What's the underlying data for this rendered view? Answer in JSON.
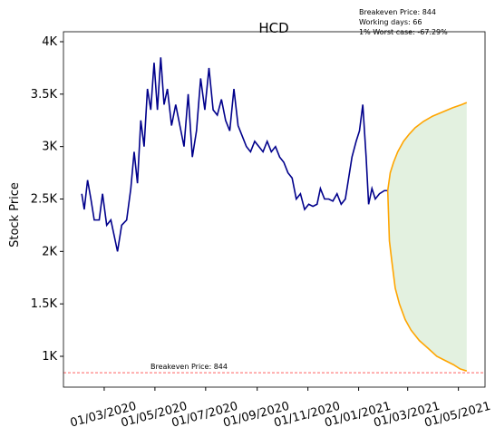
{
  "chart_data": {
    "type": "line",
    "title": "HCD",
    "y_label": "Stock Price",
    "annotation": [
      "Breakeven Price: 844",
      "Working days: 66",
      "1% Worst case: -67.29%"
    ],
    "reference_line": {
      "value": 844,
      "label": "Breakeven Price: 844",
      "color": "#ff0000"
    },
    "band_color": "#e3f1e0",
    "xlim": [
      "2020-01-12",
      "2021-06-02"
    ],
    "xticks": [
      {
        "value": "2020-03-01",
        "label": "01/03/2020"
      },
      {
        "value": "2020-05-01",
        "label": "01/05/2020"
      },
      {
        "value": "2020-07-01",
        "label": "01/07/2020"
      },
      {
        "value": "2020-09-01",
        "label": "01/09/2020"
      },
      {
        "value": "2020-11-01",
        "label": "01/11/2020"
      },
      {
        "value": "2021-01-01",
        "label": "01/01/2021"
      },
      {
        "value": "2021-03-01",
        "label": "01/03/2021"
      },
      {
        "value": "2021-05-01",
        "label": "01/05/2021"
      }
    ],
    "ylim": [
      706,
      4095
    ],
    "yticks": [
      {
        "value": 1000,
        "label": "1K"
      },
      {
        "value": 1500,
        "label": "1.5K"
      },
      {
        "value": 2000,
        "label": "2K"
      },
      {
        "value": 2500,
        "label": "2.5K"
      },
      {
        "value": 3000,
        "label": "3K"
      },
      {
        "value": 3500,
        "label": "3.5K"
      },
      {
        "value": 4000,
        "label": "4K"
      }
    ],
    "series": [
      {
        "color": "#00008b",
        "x": [
          "2020-02-03",
          "2020-02-06",
          "2020-02-10",
          "2020-02-14",
          "2020-02-18",
          "2020-02-24",
          "2020-02-28",
          "2020-03-04",
          "2020-03-09",
          "2020-03-13",
          "2020-03-17",
          "2020-03-22",
          "2020-03-28",
          "2020-04-02",
          "2020-04-06",
          "2020-04-10",
          "2020-04-14",
          "2020-04-18",
          "2020-04-22",
          "2020-04-26",
          "2020-04-30",
          "2020-05-04",
          "2020-05-08",
          "2020-05-12",
          "2020-05-16",
          "2020-05-21",
          "2020-05-26",
          "2020-05-31",
          "2020-06-05",
          "2020-06-10",
          "2020-06-15",
          "2020-06-20",
          "2020-06-25",
          "2020-06-30",
          "2020-07-05",
          "2020-07-10",
          "2020-07-15",
          "2020-07-20",
          "2020-07-25",
          "2020-07-30",
          "2020-08-04",
          "2020-08-09",
          "2020-08-14",
          "2020-08-19",
          "2020-08-24",
          "2020-08-29",
          "2020-09-03",
          "2020-09-08",
          "2020-09-13",
          "2020-09-18",
          "2020-09-23",
          "2020-09-28",
          "2020-10-03",
          "2020-10-08",
          "2020-10-13",
          "2020-10-18",
          "2020-10-23",
          "2020-10-28",
          "2020-11-02",
          "2020-11-07",
          "2020-11-12",
          "2020-11-16",
          "2020-11-21",
          "2020-11-26",
          "2020-12-01",
          "2020-12-06",
          "2020-12-11",
          "2020-12-16",
          "2020-12-20",
          "2020-12-24",
          "2020-12-29",
          "2021-01-02",
          "2021-01-06",
          "2021-01-10",
          "2021-01-13",
          "2021-01-17",
          "2021-01-21",
          "2021-01-26",
          "2021-02-01",
          "2021-02-05"
        ],
        "values": [
          2550,
          2400,
          2680,
          2500,
          2300,
          2300,
          2550,
          2250,
          2300,
          2150,
          2000,
          2250,
          2300,
          2600,
          2950,
          2650,
          3250,
          3000,
          3550,
          3350,
          3800,
          3350,
          3850,
          3400,
          3550,
          3200,
          3400,
          3200,
          3000,
          3500,
          2900,
          3150,
          3650,
          3350,
          3750,
          3350,
          3300,
          3450,
          3250,
          3150,
          3550,
          3200,
          3100,
          3000,
          2950,
          3050,
          3000,
          2950,
          3050,
          2950,
          3000,
          2900,
          2850,
          2750,
          2700,
          2500,
          2550,
          2400,
          2450,
          2430,
          2450,
          2600,
          2500,
          2500,
          2480,
          2550,
          2450,
          2500,
          2700,
          2900,
          3050,
          3150,
          3400,
          2900,
          2450,
          2600,
          2500,
          2550,
          2580,
          2580
        ]
      },
      {
        "color": "#ffa500",
        "x": [
          "2021-02-05",
          "2021-02-08",
          "2021-02-12",
          "2021-02-17",
          "2021-02-24",
          "2021-03-03",
          "2021-03-10",
          "2021-03-20",
          "2021-03-31",
          "2021-04-12",
          "2021-04-24",
          "2021-05-05",
          "2021-05-11"
        ],
        "values": [
          2580,
          2750,
          2850,
          2950,
          3050,
          3120,
          3180,
          3240,
          3290,
          3330,
          3370,
          3400,
          3420
        ]
      },
      {
        "color": "#ffa500",
        "x": [
          "2021-02-05",
          "2021-02-07",
          "2021-02-10",
          "2021-02-14",
          "2021-02-19",
          "2021-02-26",
          "2021-03-05",
          "2021-03-15",
          "2021-03-25",
          "2021-04-05",
          "2021-04-15",
          "2021-04-25",
          "2021-05-03",
          "2021-05-11"
        ],
        "values": [
          2580,
          2100,
          1900,
          1650,
          1500,
          1350,
          1250,
          1150,
          1080,
          1000,
          960,
          920,
          880,
          860
        ]
      }
    ]
  }
}
